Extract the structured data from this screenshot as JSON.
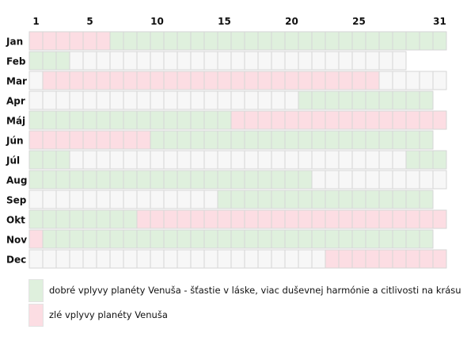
{
  "chart_data": {
    "type": "heatmap",
    "title": "",
    "x_tick_labels": [
      "1",
      "5",
      "10",
      "15",
      "20",
      "25",
      "31"
    ],
    "x_tick_days": [
      1,
      5,
      10,
      15,
      20,
      25,
      31
    ],
    "colors": {
      "good": "#dff0dd",
      "bad": "#fcdde3",
      "neutral": "#f7f7f7",
      "grid": "#d6d6d6"
    },
    "months": [
      {
        "label": "Jan",
        "days": 31,
        "segments": [
          {
            "from": 1,
            "to": 6,
            "state": "bad"
          },
          {
            "from": 7,
            "to": 31,
            "state": "good"
          }
        ]
      },
      {
        "label": "Feb",
        "days": 28,
        "segments": [
          {
            "from": 1,
            "to": 3,
            "state": "good"
          },
          {
            "from": 4,
            "to": 28,
            "state": "neutral"
          }
        ]
      },
      {
        "label": "Mar",
        "days": 31,
        "segments": [
          {
            "from": 1,
            "to": 1,
            "state": "neutral"
          },
          {
            "from": 2,
            "to": 26,
            "state": "bad"
          },
          {
            "from": 27,
            "to": 31,
            "state": "neutral"
          }
        ]
      },
      {
        "label": "Apr",
        "days": 30,
        "segments": [
          {
            "from": 1,
            "to": 20,
            "state": "neutral"
          },
          {
            "from": 21,
            "to": 30,
            "state": "good"
          }
        ]
      },
      {
        "label": "Máj",
        "days": 31,
        "segments": [
          {
            "from": 1,
            "to": 15,
            "state": "good"
          },
          {
            "from": 16,
            "to": 31,
            "state": "bad"
          }
        ]
      },
      {
        "label": "Jún",
        "days": 30,
        "segments": [
          {
            "from": 1,
            "to": 9,
            "state": "bad"
          },
          {
            "from": 10,
            "to": 30,
            "state": "good"
          }
        ]
      },
      {
        "label": "Júl",
        "days": 31,
        "segments": [
          {
            "from": 1,
            "to": 3,
            "state": "good"
          },
          {
            "from": 4,
            "to": 28,
            "state": "neutral"
          },
          {
            "from": 29,
            "to": 31,
            "state": "good"
          }
        ]
      },
      {
        "label": "Aug",
        "days": 31,
        "segments": [
          {
            "from": 1,
            "to": 21,
            "state": "good"
          },
          {
            "from": 22,
            "to": 31,
            "state": "neutral"
          }
        ]
      },
      {
        "label": "Sep",
        "days": 30,
        "segments": [
          {
            "from": 1,
            "to": 14,
            "state": "neutral"
          },
          {
            "from": 15,
            "to": 30,
            "state": "good"
          }
        ]
      },
      {
        "label": "Okt",
        "days": 31,
        "segments": [
          {
            "from": 1,
            "to": 8,
            "state": "good"
          },
          {
            "from": 9,
            "to": 31,
            "state": "bad"
          }
        ]
      },
      {
        "label": "Nov",
        "days": 30,
        "segments": [
          {
            "from": 1,
            "to": 1,
            "state": "bad"
          },
          {
            "from": 2,
            "to": 30,
            "state": "good"
          }
        ]
      },
      {
        "label": "Dec",
        "days": 31,
        "segments": [
          {
            "from": 1,
            "to": 22,
            "state": "neutral"
          },
          {
            "from": 23,
            "to": 31,
            "state": "bad"
          }
        ]
      }
    ]
  },
  "legend": {
    "good": {
      "label": "dobré vplyvy planéty Venuša - šťastie v láske, viac duševnej harmónie a citlivosti na krásu",
      "color": "#dff0dd"
    },
    "bad": {
      "label": "zlé vplyvy planéty Venuša",
      "color": "#fcdde3"
    }
  }
}
